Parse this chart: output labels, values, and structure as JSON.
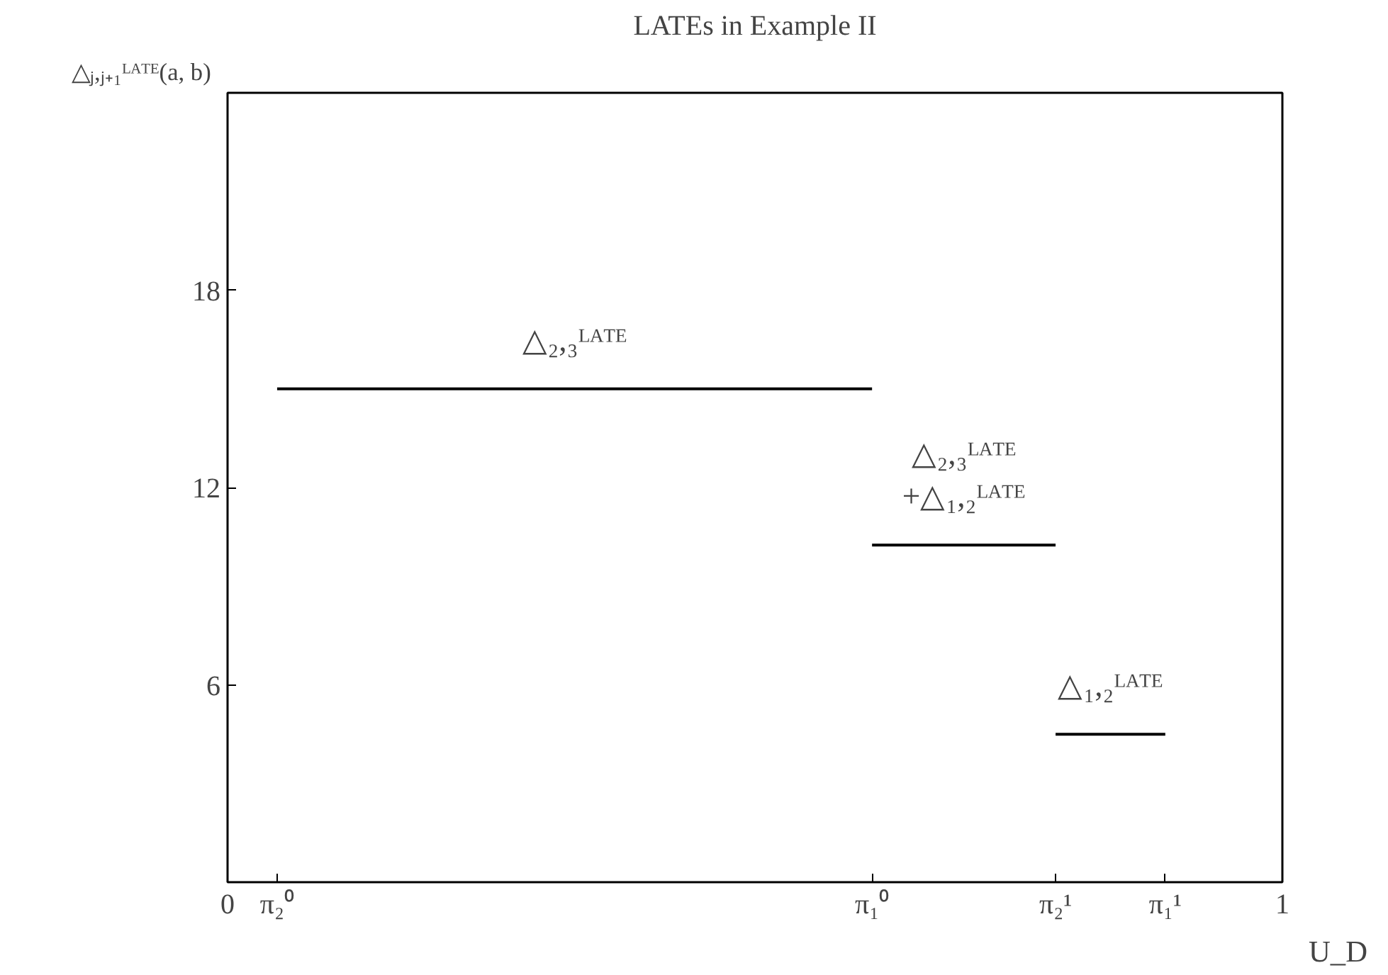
{
  "chart_data": {
    "type": "line",
    "title": "LATEs in Example II",
    "xlabel": "U_D",
    "ylabel": "△ⱼ,ⱼ₊₁ᴸᴬᵀᴱ(a, b)",
    "xlim": [
      0,
      1
    ],
    "ylim": [
      0,
      24
    ],
    "xticks": [
      0,
      {
        "value": 0.047,
        "label": "π₂⁰"
      },
      {
        "value": 0.611,
        "label": "π₁⁰"
      },
      {
        "value": 0.785,
        "label": "π₂¹"
      },
      {
        "value": 0.889,
        "label": "π₁¹"
      },
      1
    ],
    "yticks": [
      6,
      12,
      18
    ],
    "series": [
      {
        "color": "#000000",
        "x": [
          0.047,
          0.611
        ],
        "values": [
          15,
          15
        ]
      },
      {
        "color": "#000000",
        "x": [
          0.611,
          0.785
        ],
        "values": [
          10.25,
          10.25
        ]
      },
      {
        "color": "#000000",
        "x": [
          0.785,
          0.889
        ],
        "values": [
          4.5,
          4.5
        ]
      }
    ],
    "annotations": [
      "△₂,₃ᴸᴬᵀᴱ",
      "△₂,₃ᴸᴬᵀᴱ\n+△₁,₂ᴸᴬᵀᴱ",
      "△₁,₂ᴸᴬᵀᴱ"
    ],
    "grid": false,
    "marker": "none",
    "line_style": "solid"
  }
}
